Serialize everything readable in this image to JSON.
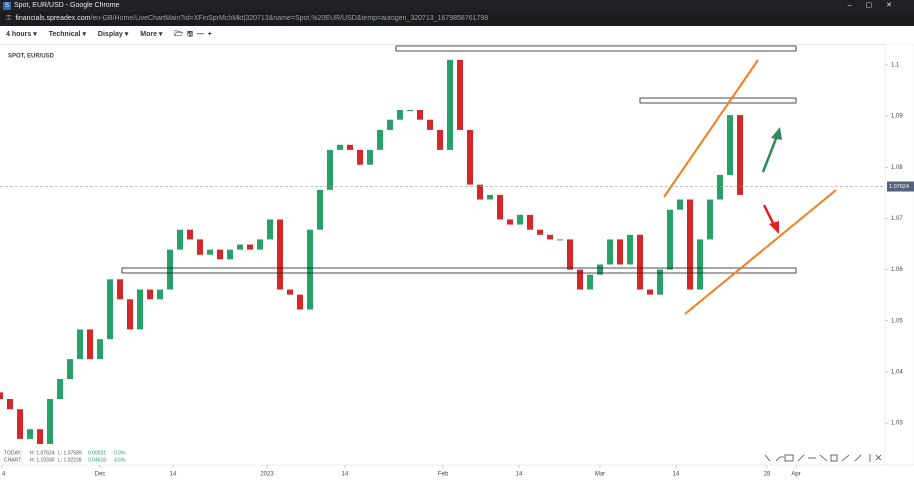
{
  "window": {
    "title": "Spot, EUR/USD - Google Chrome",
    "url_host": "financials.spreadex.com",
    "url_path": "/en-GB/Home/LiveChartMain?id=XFinSprMchMkt|320713&name=Spot,%20EUR/USD&temp=autogen_320713_1679858761798"
  },
  "toolbar": [
    "4 hours",
    "Technical",
    "Display",
    "More"
  ],
  "chart_data": {
    "type": "candlestick",
    "title": "SPOT, EUR/USD",
    "up_color": "#26a269",
    "down_color": "#d62728",
    "x": [
      0,
      2,
      4,
      6,
      8,
      10,
      12,
      14,
      16,
      18,
      20,
      22,
      24,
      26,
      28,
      30,
      32,
      34,
      36,
      38,
      40,
      42,
      44,
      46,
      48,
      50,
      52,
      54,
      56,
      58,
      60,
      62,
      64,
      66,
      68,
      70,
      72,
      74,
      76,
      78,
      80,
      82,
      84,
      86,
      88,
      90,
      92,
      94,
      96,
      98,
      100,
      102,
      104,
      106,
      108,
      110,
      112,
      114,
      116,
      118,
      120,
      122,
      124,
      126,
      128,
      130,
      132,
      134,
      136,
      138,
      140,
      142,
      144,
      146,
      148
    ],
    "open": [
      1.036,
      1.0347,
      1.0327,
      1.0269,
      1.0288,
      1.0259,
      1.0347,
      1.0386,
      1.0425,
      1.0483,
      1.0425,
      1.0464,
      1.0581,
      1.0542,
      1.0483,
      1.0561,
      1.0542,
      1.0561,
      1.0639,
      1.0678,
      1.0659,
      1.0629,
      1.0639,
      1.062,
      1.0639,
      1.0649,
      1.0639,
      1.0659,
      1.0698,
      1.0561,
      1.0551,
      1.0522,
      1.0678,
      1.0756,
      1.0834,
      1.0844,
      1.0834,
      1.0805,
      1.0834,
      1.0873,
      1.0893,
      1.0912,
      1.0912,
      1.0893,
      1.0873,
      1.0834,
      1.101,
      1.0873,
      1.0766,
      1.0737,
      1.0746,
      1.0698,
      1.0688,
      1.0707,
      1.0678,
      1.0668,
      1.0659,
      1.0659,
      1.06,
      1.0561,
      1.059,
      1.061,
      1.0659,
      1.061,
      1.0668,
      1.0561,
      1.0551,
      1.06,
      1.0717,
      1.0737,
      1.0561,
      1.0659,
      1.0737,
      1.0785,
      1.0902
    ],
    "close": [
      1.0347,
      1.0327,
      1.0269,
      1.0288,
      1.0259,
      1.0347,
      1.0386,
      1.0425,
      1.0483,
      1.0425,
      1.0464,
      1.0581,
      1.0542,
      1.0483,
      1.0561,
      1.0542,
      1.0561,
      1.0639,
      1.0678,
      1.0659,
      1.0629,
      1.0639,
      1.062,
      1.0639,
      1.0649,
      1.0639,
      1.0659,
      1.0698,
      1.0561,
      1.0551,
      1.0522,
      1.0678,
      1.0756,
      1.0834,
      1.0844,
      1.0834,
      1.0805,
      1.0834,
      1.0873,
      1.0893,
      1.0912,
      1.0912,
      1.0893,
      1.0873,
      1.0834,
      1.101,
      1.0873,
      1.0766,
      1.0737,
      1.0746,
      1.0698,
      1.0688,
      1.0707,
      1.0678,
      1.0668,
      1.0659,
      1.0659,
      1.06,
      1.0561,
      1.059,
      1.061,
      1.0659,
      1.061,
      1.0668,
      1.0561,
      1.0551,
      1.06,
      1.0717,
      1.0737,
      1.0561,
      1.0659,
      1.0737,
      1.0785,
      1.0902,
      1.0746
    ],
    "xlim": [
      0,
      177
    ],
    "xticks": [
      {
        "value": 0.4,
        "label": "4"
      },
      {
        "value": 20,
        "label": "Dec"
      },
      {
        "value": 34.6,
        "label": "14"
      },
      {
        "value": 53.4,
        "label": "2023"
      },
      {
        "value": 69,
        "label": "14"
      },
      {
        "value": 88.6,
        "label": "Feb"
      },
      {
        "value": 103.8,
        "label": "14"
      },
      {
        "value": 120,
        "label": "Mar"
      },
      {
        "value": 135.2,
        "label": "14"
      },
      {
        "value": 153.4,
        "label": "28"
      },
      {
        "value": 159.2,
        "label": "Apr"
      }
    ],
    "ylim": [
      1.0218,
      1.1041
    ],
    "yticks": [
      1.1,
      1.09,
      1.08,
      1.07,
      1.06,
      1.05,
      1.04,
      1.03
    ],
    "last_price": 1.07624,
    "info": [
      [
        "TODAY:",
        "H: 1.07624",
        "L: 1.07589",
        "0.00031",
        "0.0%"
      ],
      [
        "CHART:",
        "H: 1.10330",
        "L: 1.02228",
        "0.04618",
        "4.5%"
      ]
    ]
  }
}
